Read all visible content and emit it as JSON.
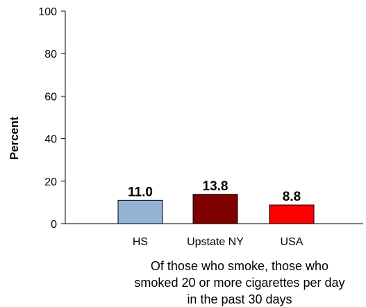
{
  "chart_data": {
    "type": "bar",
    "categories": [
      "HS",
      "Upstate NY",
      "USA"
    ],
    "values": [
      11.0,
      13.8,
      8.8
    ],
    "data_labels": [
      "11.0",
      "13.8",
      "8.8"
    ],
    "colors": [
      "#95b3d7",
      "#800000",
      "#ff0000"
    ],
    "ylabel": "Percent",
    "xlabel_lines": [
      "Of  those who smoke, those who",
      "smoked 20 or more cigarettes per day",
      "in the past 30 days"
    ],
    "ylim": [
      0,
      100
    ],
    "yticks": [
      0,
      20,
      40,
      60,
      80,
      100
    ],
    "ytick_labels": [
      "0",
      "20",
      "40",
      "60",
      "80",
      "100"
    ],
    "grid": false,
    "legend": "none"
  }
}
